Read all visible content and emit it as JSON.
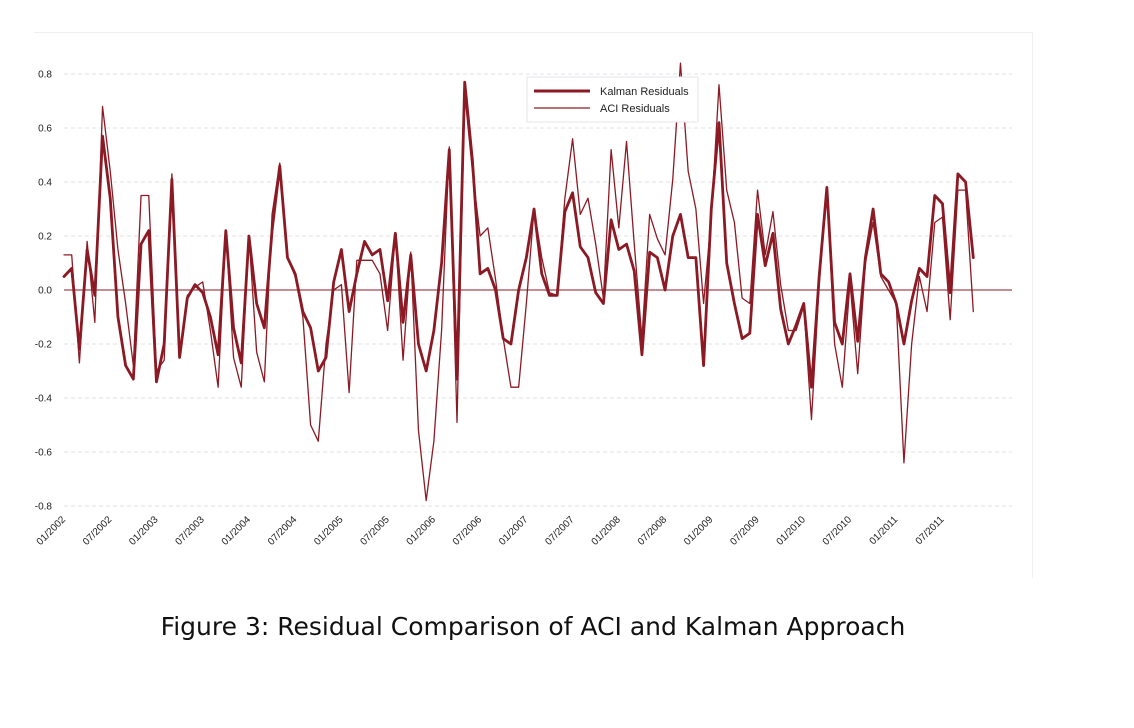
{
  "caption": "Figure 3: Residual Comparison of ACI and Kalman Approach",
  "chart_data": {
    "type": "line",
    "title": "",
    "xlabel": "",
    "ylabel": "",
    "ylim": [
      -0.8,
      0.8
    ],
    "xlim": [
      0,
      119
    ],
    "grid": true,
    "legend_position": "top-center",
    "yticks": [
      0.8,
      0.6,
      0.4,
      0.2,
      0.0,
      -0.2,
      -0.4,
      -0.6,
      -0.8
    ],
    "ytick_labels": [
      "0.8",
      "0.6",
      "0.4",
      "0.2",
      "0.0",
      "-0.2",
      "-0.4",
      "-0.6",
      "-0.8"
    ],
    "xticks": [
      0,
      6,
      12,
      18,
      24,
      30,
      36,
      42,
      48,
      54,
      60,
      66,
      72,
      78,
      84,
      90,
      96,
      102,
      108,
      114
    ],
    "xtick_labels": [
      "01/2002",
      "07/2002",
      "01/2003",
      "07/2003",
      "01/2004",
      "07/2004",
      "01/2005",
      "07/2005",
      "01/2006",
      "07/2006",
      "01/2007",
      "07/2007",
      "01/2008",
      "07/2008",
      "01/2009",
      "07/2009",
      "01/2010",
      "07/2010",
      "01/2011",
      "07/2011"
    ],
    "zero_line_color": "#8b1a24",
    "series": [
      {
        "name": "Kalman Residuals",
        "color": "#8b1a24",
        "style": "thick",
        "values": [
          0.05,
          0.08,
          -0.22,
          0.15,
          -0.02,
          0.57,
          0.34,
          -0.1,
          -0.28,
          -0.33,
          0.17,
          0.22,
          -0.34,
          -0.2,
          0.41,
          -0.25,
          -0.03,
          0.02,
          -0.01,
          -0.1,
          -0.24,
          0.22,
          -0.14,
          -0.27,
          0.2,
          -0.05,
          -0.14,
          0.22,
          0.46,
          0.12,
          0.06,
          -0.08,
          -0.14,
          -0.3,
          -0.25,
          0.03,
          0.15,
          -0.08,
          0.06,
          0.18,
          0.13,
          0.15,
          -0.04,
          0.21,
          -0.12,
          0.13,
          -0.2,
          -0.3,
          -0.15,
          0.1,
          0.52,
          -0.33,
          0.77,
          0.48,
          0.06,
          0.08,
          0.0,
          -0.18,
          -0.2,
          0.0,
          0.12,
          0.3,
          0.06,
          -0.02,
          -0.02,
          0.29,
          0.36,
          0.16,
          0.12,
          -0.01,
          -0.05,
          0.26,
          0.15,
          0.17,
          0.07,
          -0.24,
          0.14,
          0.12,
          0.0,
          0.2,
          0.28,
          0.12,
          0.12,
          -0.28,
          0.3,
          0.62,
          0.1,
          -0.05,
          -0.18,
          -0.16,
          0.28,
          0.09,
          0.21,
          -0.07,
          -0.2,
          -0.13,
          -0.05,
          -0.36,
          0.05,
          0.38,
          -0.12,
          -0.2,
          0.06,
          -0.19,
          0.12,
          0.3,
          0.06,
          0.03,
          -0.05,
          -0.2,
          -0.04,
          0.08,
          0.05,
          0.35,
          0.32,
          -0.01,
          0.43,
          0.4,
          0.12
        ]
      },
      {
        "name": "ACI Residuals",
        "color": "#8b1a24",
        "style": "thin",
        "values": [
          0.13,
          0.13,
          -0.27,
          0.18,
          -0.12,
          0.68,
          0.44,
          0.15,
          -0.05,
          -0.28,
          0.35,
          0.35,
          -0.3,
          -0.26,
          0.43,
          -0.25,
          -0.02,
          0.01,
          0.03,
          -0.15,
          -0.36,
          0.22,
          -0.25,
          -0.36,
          0.2,
          -0.23,
          -0.34,
          0.28,
          0.47,
          0.12,
          0.05,
          -0.1,
          -0.5,
          -0.56,
          -0.2,
          0.0,
          0.02,
          -0.38,
          0.11,
          0.11,
          0.11,
          0.06,
          -0.15,
          0.21,
          -0.26,
          0.14,
          -0.52,
          -0.78,
          -0.56,
          -0.15,
          0.53,
          -0.49,
          0.73,
          0.44,
          0.2,
          0.23,
          0.04,
          -0.18,
          -0.36,
          -0.36,
          -0.05,
          0.3,
          0.12,
          -0.01,
          -0.02,
          0.34,
          0.56,
          0.28,
          0.34,
          0.17,
          -0.03,
          0.52,
          0.23,
          0.55,
          0.17,
          -0.18,
          0.28,
          0.19,
          0.13,
          0.41,
          0.84,
          0.44,
          0.3,
          -0.05,
          0.27,
          0.76,
          0.37,
          0.25,
          -0.03,
          -0.05,
          0.37,
          0.13,
          0.29,
          0.02,
          -0.15,
          -0.15,
          -0.06,
          -0.48,
          0.02,
          0.38,
          -0.2,
          -0.36,
          0.03,
          -0.31,
          0.1,
          0.25,
          0.05,
          0.0,
          -0.05,
          -0.64,
          -0.2,
          0.05,
          -0.08,
          0.25,
          0.27,
          -0.11,
          0.37,
          0.37,
          -0.08
        ]
      }
    ]
  }
}
